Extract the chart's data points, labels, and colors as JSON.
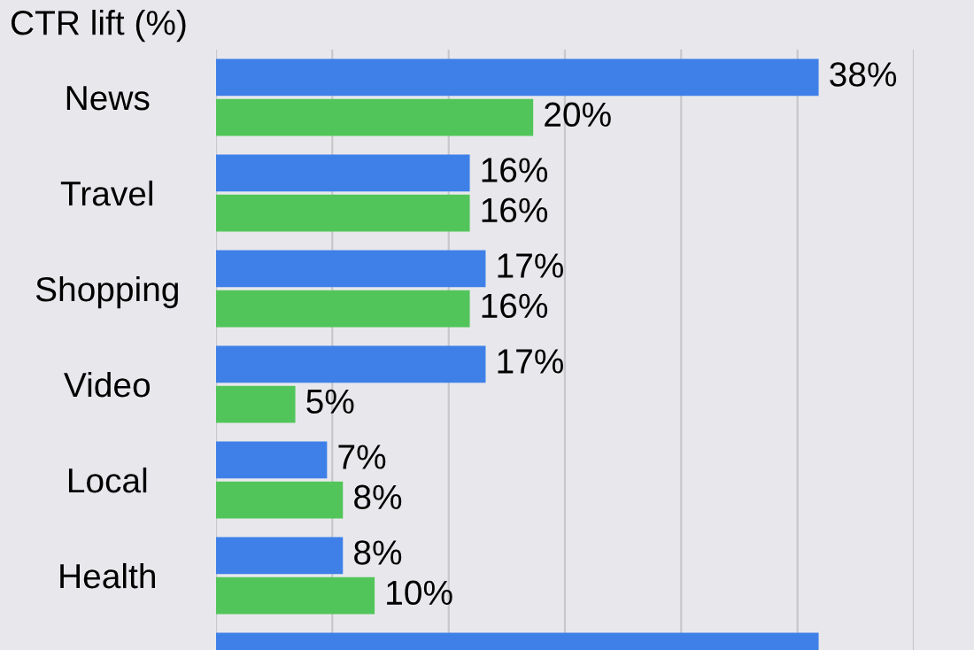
{
  "chart_data": {
    "type": "bar",
    "orientation": "horizontal",
    "title": "CTR lift (%)",
    "categories": [
      "News",
      "Travel",
      "Shopping",
      "Video",
      "Local",
      "Health",
      null
    ],
    "series": [
      {
        "color": "#3f80e8",
        "values": [
          38,
          16,
          17,
          17,
          7,
          8,
          38
        ],
        "value_labels": [
          "38%",
          "16%",
          "17%",
          "17%",
          "7%",
          "8%",
          null
        ]
      },
      {
        "color": "#52c55a",
        "values": [
          20,
          16,
          16,
          5,
          8,
          10,
          null
        ],
        "value_labels": [
          "20%",
          "16%",
          "16%",
          "5%",
          "8%",
          "10%",
          null
        ]
      }
    ],
    "xlim": [
      0,
      44
    ],
    "xticks": [
      {
        "value": 0,
        "label": null
      },
      {
        "value": 7.33,
        "label": null
      },
      {
        "value": 14.67,
        "label": null
      },
      {
        "value": 22,
        "label": null
      },
      {
        "value": 29.33,
        "label": null
      },
      {
        "value": 36.67,
        "label": null
      },
      {
        "value": 44,
        "label": null
      }
    ],
    "grid": "x",
    "tick_labels": "y"
  }
}
